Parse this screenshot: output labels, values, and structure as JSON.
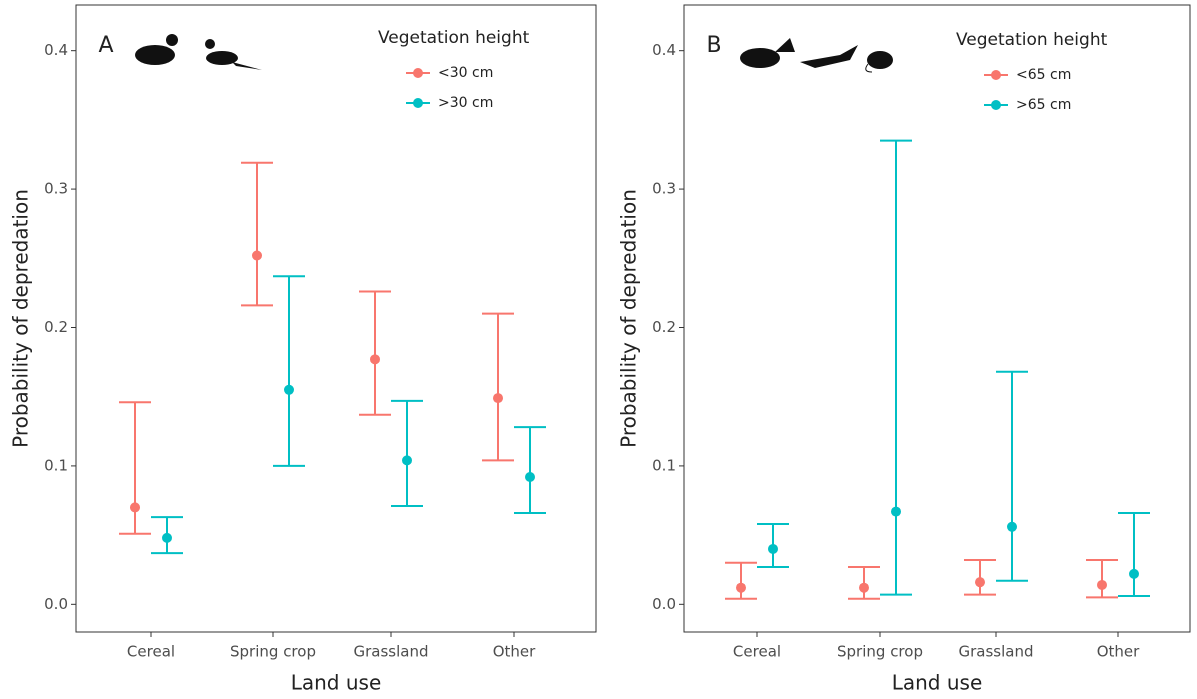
{
  "chart_data": [
    {
      "type": "errorbar",
      "panel_label": "A",
      "x_label": "Land use",
      "y_label": "Probability of depredation",
      "legend_title": "Vegetation height",
      "categories": [
        "Cereal",
        "Spring crop",
        "Grassland",
        "Other"
      ],
      "ylim": [
        -0.02,
        0.433
      ],
      "yticks": [
        {
          "value": 0,
          "label": "0.0"
        },
        0.1,
        0.2,
        0.3,
        0.4
      ],
      "series": [
        {
          "name": "<30 cm",
          "color": "#f8766d",
          "values": [
            0.07,
            0.252,
            0.177,
            0.149
          ],
          "lower": [
            0.051,
            0.216,
            0.137,
            0.104
          ],
          "upper": [
            0.146,
            0.319,
            0.226,
            0.21
          ]
        },
        {
          "name": ">30 cm",
          "color": "#00bfc4",
          "values": [
            0.048,
            0.155,
            0.104,
            0.092
          ],
          "lower": [
            0.037,
            0.1,
            0.071,
            0.066
          ],
          "upper": [
            0.063,
            0.237,
            0.147,
            0.128
          ]
        }
      ]
    },
    {
      "type": "errorbar",
      "panel_label": "B",
      "x_label": "Land use",
      "y_label": "Probability of depredation",
      "legend_title": "Vegetation height",
      "categories": [
        "Cereal",
        "Spring crop",
        "Grassland",
        "Other"
      ],
      "ylim": [
        -0.02,
        0.433
      ],
      "yticks": [
        {
          "value": 0,
          "label": "0.0"
        },
        0.1,
        0.2,
        0.3,
        0.4
      ],
      "series": [
        {
          "name": "<65 cm",
          "color": "#f8766d",
          "values": [
            0.012,
            0.012,
            0.016,
            0.014
          ],
          "lower": [
            0.004,
            0.004,
            0.007,
            0.005
          ],
          "upper": [
            0.03,
            0.027,
            0.032,
            0.032
          ]
        },
        {
          "name": ">65 cm",
          "color": "#00bfc4",
          "values": [
            0.04,
            0.067,
            0.056,
            0.022
          ],
          "lower": [
            0.027,
            0.007,
            0.017,
            0.006
          ],
          "upper": [
            0.058,
            0.335,
            0.168,
            0.066
          ]
        }
      ]
    }
  ]
}
